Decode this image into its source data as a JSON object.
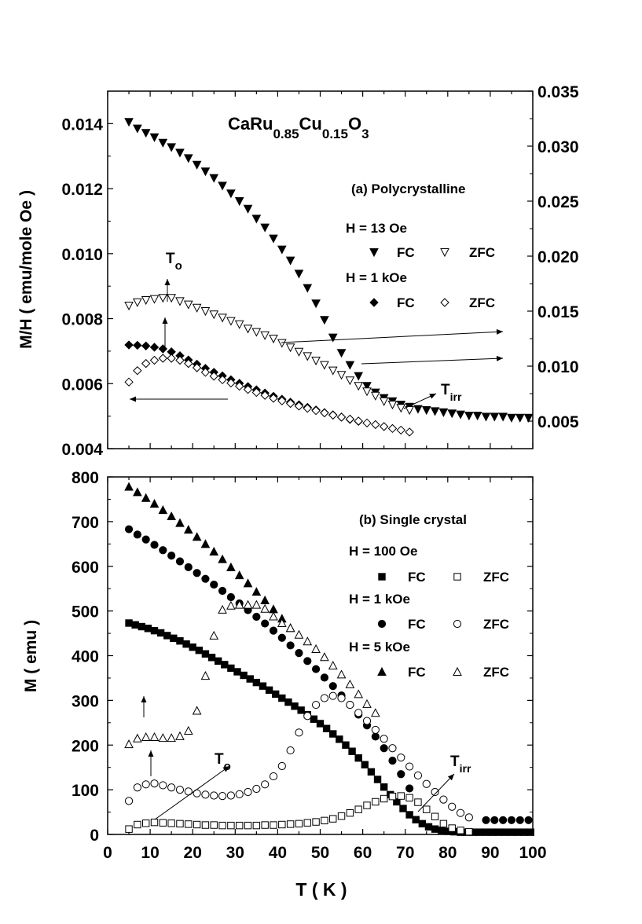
{
  "chart_data": [
    {
      "panel": "a",
      "type": "scatter",
      "formula": {
        "base": "CaRu",
        "sub1": "0.85",
        "mid": "Cu",
        "sub2": "0.15",
        "end": "O",
        "sub3": "3"
      },
      "annotation": "(a) Polycrystalline",
      "xlabel": "",
      "ylabel": "M/H ( emu/mole Oe )",
      "xlim": [
        0,
        100
      ],
      "ylim": [
        0.004,
        0.015
      ],
      "y2lim": [
        0.0025,
        0.035
      ],
      "y_ticks": [
        "0.004",
        "0.006",
        "0.008",
        "0.010",
        "0.012",
        "0.014"
      ],
      "y2_ticks": [
        "0.005",
        "0.010",
        "0.015",
        "0.020",
        "0.025",
        "0.030",
        "0.035"
      ],
      "legend": {
        "field1": "H = 13 Oe",
        "field2": "H = 1 kOe",
        "fc": "FC",
        "zfc": "ZFC"
      },
      "labels": {
        "To": "T",
        "To_sub": "o",
        "Tirr": "T",
        "Tirr_sub": "irr"
      },
      "series": [
        {
          "name": "H = 13 Oe FC",
          "marker": "tri-down-filled",
          "axis": "right",
          "x": [
            5,
            7,
            9,
            11,
            13,
            15,
            17,
            19,
            21,
            23,
            25,
            27,
            29,
            31,
            33,
            35,
            37,
            39,
            41,
            43,
            45,
            47,
            49,
            51,
            53,
            55,
            57,
            59,
            61,
            63,
            65,
            67,
            69,
            71,
            73,
            75,
            77,
            79,
            81,
            83,
            85,
            87,
            89,
            91,
            93,
            95,
            97,
            99
          ],
          "y": [
            0.0322,
            0.0316,
            0.0312,
            0.0308,
            0.0303,
            0.0299,
            0.0294,
            0.0289,
            0.0283,
            0.0277,
            0.0271,
            0.0264,
            0.0257,
            0.025,
            0.0243,
            0.0234,
            0.0226,
            0.0216,
            0.0206,
            0.0196,
            0.0184,
            0.0171,
            0.0157,
            0.0142,
            0.0126,
            0.0112,
            0.0101,
            0.0091,
            0.0082,
            0.0076,
            0.0071,
            0.0068,
            0.0065,
            0.0063,
            0.0061,
            0.006,
            0.0059,
            0.0058,
            0.0057,
            0.0056,
            0.0055,
            0.0055,
            0.0054,
            0.0054,
            0.0054,
            0.0053,
            0.0053,
            0.0053
          ]
        },
        {
          "name": "H = 13 Oe ZFC",
          "marker": "tri-down-open",
          "axis": "right",
          "x": [
            5,
            7,
            9,
            11,
            13,
            15,
            17,
            19,
            21,
            23,
            25,
            27,
            29,
            31,
            33,
            35,
            37,
            39,
            41,
            43,
            45,
            47,
            49,
            51,
            53,
            55,
            57,
            59,
            61,
            63,
            65,
            67,
            69,
            71
          ],
          "y": [
            0.0155,
            0.0158,
            0.016,
            0.0161,
            0.0162,
            0.0162,
            0.0159,
            0.0156,
            0.0153,
            0.015,
            0.0147,
            0.0144,
            0.0141,
            0.0138,
            0.0134,
            0.0131,
            0.0128,
            0.0125,
            0.0121,
            0.0117,
            0.0113,
            0.0109,
            0.0105,
            0.0101,
            0.0096,
            0.0092,
            0.0087,
            0.0082,
            0.0077,
            0.0073,
            0.0068,
            0.0065,
            0.0062,
            0.006
          ]
        },
        {
          "name": "H = 1 kOe FC",
          "marker": "diamond-filled",
          "axis": "left",
          "x": [
            5,
            7,
            9,
            11,
            13,
            15,
            17,
            19,
            21,
            23,
            25,
            27,
            29,
            31,
            33,
            35,
            37,
            39,
            41,
            43,
            45,
            47,
            49,
            51,
            53,
            55,
            57,
            59
          ],
          "y": [
            0.00719,
            0.00718,
            0.00716,
            0.00712,
            0.00707,
            0.00698,
            0.00686,
            0.00673,
            0.0066,
            0.00647,
            0.00635,
            0.00624,
            0.00612,
            0.00601,
            0.00591,
            0.00581,
            0.00571,
            0.00561,
            0.00552,
            0.00543,
            0.00535,
            0.00527,
            0.00519,
            0.00511,
            0.00504,
            0.00497,
            0.0049,
            0.00484
          ]
        },
        {
          "name": "H = 1 kOe ZFC",
          "marker": "diamond-open",
          "axis": "left",
          "x": [
            5,
            7,
            9,
            11,
            13,
            15,
            17,
            19,
            21,
            23,
            25,
            27,
            29,
            31,
            33,
            35,
            37,
            39,
            41,
            43,
            45,
            47,
            49,
            51,
            53,
            55,
            57,
            59,
            61,
            63,
            65,
            67,
            69,
            71
          ],
          "y": [
            0.00605,
            0.0064,
            0.00662,
            0.00672,
            0.00678,
            0.00678,
            0.00672,
            0.00662,
            0.00649,
            0.00635,
            0.00623,
            0.00612,
            0.00602,
            0.00592,
            0.00582,
            0.00573,
            0.00564,
            0.00555,
            0.00547,
            0.00539,
            0.00531,
            0.00524,
            0.00517,
            0.0051,
            0.00503,
            0.00497,
            0.00491,
            0.00485,
            0.00479,
            0.00474,
            0.00468,
            0.00462,
            0.00457,
            0.00451
          ]
        }
      ]
    },
    {
      "panel": "b",
      "type": "scatter",
      "annotation": "(b) Single crystal",
      "xlabel": "T ( K )",
      "ylabel": "M ( emu )",
      "xlim": [
        0,
        100
      ],
      "ylim": [
        0,
        800
      ],
      "x_ticks": [
        "0",
        "10",
        "20",
        "30",
        "40",
        "50",
        "60",
        "70",
        "80",
        "90",
        "100"
      ],
      "y_ticks": [
        "0",
        "100",
        "200",
        "300",
        "400",
        "500",
        "600",
        "700",
        "800"
      ],
      "legend": {
        "field1": "H = 100 Oe",
        "field2": "H = 1 kOe",
        "field3": "H = 5 kOe",
        "fc": "FC",
        "zfc": "ZFC"
      },
      "labels": {
        "To": "T",
        "To_sub": "o",
        "Tirr": "T",
        "Tirr_sub": "irr"
      },
      "series": [
        {
          "name": "H = 100 Oe FC",
          "marker": "square-filled",
          "x": [
            5,
            6.5,
            8,
            9.5,
            11,
            12.5,
            14,
            15.5,
            17,
            18.5,
            20,
            21.5,
            23,
            24.5,
            26,
            27.5,
            29,
            30.5,
            32,
            33.5,
            35,
            36.5,
            38,
            39.5,
            41,
            42.5,
            44,
            45.5,
            47,
            48.5,
            50,
            51.5,
            53,
            54.5,
            56,
            57.5,
            59,
            60.5,
            62,
            63.5,
            65,
            66.5,
            68,
            69.5,
            71,
            72.5,
            74,
            75.5,
            77,
            78.5,
            80,
            81.5,
            83,
            84.5,
            86,
            87.5,
            89,
            90.5,
            92,
            93.5,
            95,
            96.5,
            98,
            99.5
          ],
          "y": [
            473,
            469,
            465,
            461,
            456,
            451,
            445,
            439,
            433,
            426,
            419,
            412,
            404,
            396,
            388,
            380,
            372,
            364,
            356,
            348,
            340,
            332,
            323,
            314,
            305,
            296,
            287,
            278,
            268,
            258,
            248,
            237,
            225,
            213,
            200,
            186,
            171,
            156,
            140,
            123,
            106,
            89,
            73,
            58,
            44,
            33,
            24,
            17,
            12,
            9,
            7,
            6,
            5,
            5,
            5,
            5,
            5,
            5,
            5,
            5,
            5,
            5,
            5,
            5
          ]
        },
        {
          "name": "H = 100 Oe ZFC",
          "marker": "square-open",
          "x": [
            5,
            7,
            9,
            11,
            13,
            15,
            17,
            19,
            21,
            23,
            25,
            27,
            29,
            31,
            33,
            35,
            37,
            39,
            41,
            43,
            45,
            47,
            49,
            51,
            53,
            55,
            57,
            59,
            61,
            63,
            65,
            67,
            69,
            71,
            73,
            75,
            77,
            79,
            81,
            83,
            85
          ],
          "y": [
            12,
            22,
            25,
            27,
            26,
            25,
            24,
            23,
            22,
            21,
            21,
            20,
            20,
            20,
            20,
            20,
            21,
            21,
            22,
            23,
            24,
            26,
            28,
            31,
            35,
            41,
            48,
            56,
            65,
            73,
            80,
            85,
            86,
            82,
            72,
            56,
            40,
            24,
            14,
            9,
            6
          ]
        },
        {
          "name": "H = 1 kOe FC",
          "marker": "circle-filled",
          "x": [
            5,
            7,
            9,
            11,
            13,
            15,
            17,
            19,
            21,
            23,
            25,
            27,
            29,
            31,
            33,
            35,
            37,
            39,
            41,
            43,
            45,
            47,
            49,
            51,
            53,
            55,
            57,
            59,
            61,
            63,
            65,
            67,
            69,
            71,
            89,
            91,
            93,
            95,
            97,
            99
          ],
          "y": [
            683,
            671,
            660,
            648,
            636,
            624,
            611,
            598,
            585,
            572,
            559,
            545,
            531,
            517,
            502,
            487,
            472,
            456,
            440,
            423,
            406,
            388,
            370,
            351,
            332,
            311,
            290,
            268,
            244,
            219,
            193,
            165,
            135,
            103,
            32,
            32,
            32,
            32,
            32,
            32
          ]
        },
        {
          "name": "H = 1 kOe ZFC",
          "marker": "circle-open",
          "x": [
            5,
            7,
            9,
            11,
            13,
            15,
            17,
            19,
            21,
            23,
            25,
            27,
            29,
            31,
            33,
            35,
            37,
            39,
            41,
            43,
            45,
            47,
            49,
            51,
            53,
            55,
            57,
            59,
            61,
            63,
            65,
            67,
            69,
            71,
            73,
            75,
            77,
            79,
            81,
            83,
            85
          ],
          "y": [
            75,
            105,
            112,
            114,
            110,
            105,
            100,
            96,
            92,
            89,
            87,
            86,
            87,
            90,
            95,
            102,
            112,
            130,
            153,
            188,
            228,
            265,
            290,
            305,
            310,
            305,
            290,
            272,
            254,
            234,
            214,
            193,
            172,
            152,
            132,
            113,
            95,
            78,
            62,
            48,
            38
          ]
        },
        {
          "name": "H = 5 kOe FC",
          "marker": "tri-up-filled",
          "x": [
            5,
            7,
            9,
            11,
            13,
            15,
            17,
            19,
            21,
            23,
            25,
            27,
            29,
            31,
            33,
            35,
            37,
            39,
            41,
            43
          ],
          "y": [
            778,
            766,
            753,
            740,
            726,
            712,
            697,
            682,
            666,
            650,
            633,
            616,
            598,
            580,
            562,
            543,
            524,
            504,
            483,
            462
          ]
        },
        {
          "name": "H = 5 kOe ZFC",
          "marker": "tri-up-open",
          "x": [
            5,
            7,
            9,
            11,
            13,
            15,
            17,
            19,
            21,
            23,
            25,
            27,
            29,
            31,
            33,
            35,
            37,
            39,
            41,
            43,
            45,
            47,
            49,
            51,
            53,
            55,
            57,
            59,
            61,
            63
          ],
          "y": [
            202,
            215,
            218,
            218,
            216,
            216,
            220,
            232,
            277,
            355,
            445,
            503,
            512,
            514,
            514,
            514,
            505,
            488,
            473,
            462,
            447,
            432,
            415,
            397,
            378,
            358,
            336,
            314,
            292,
            272
          ]
        }
      ]
    }
  ]
}
